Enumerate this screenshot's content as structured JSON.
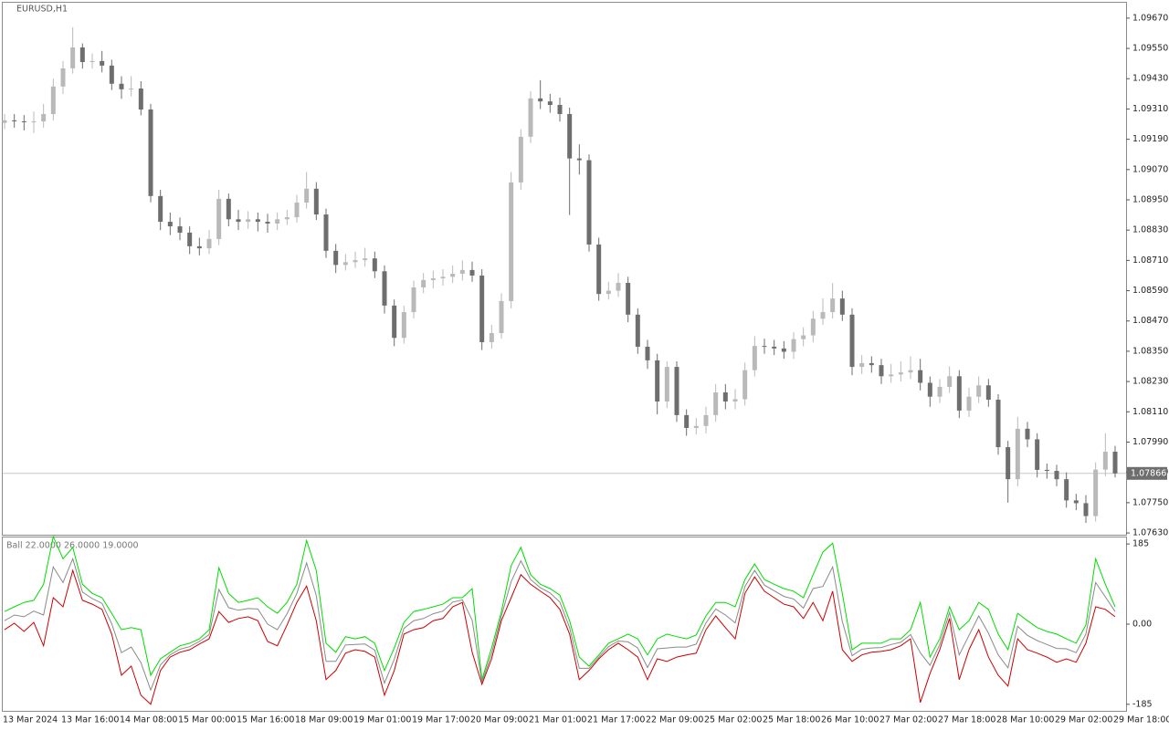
{
  "chart_data": [
    {
      "type": "candlestick",
      "title": "EURUSD,H1",
      "up_color": "#b9b9b9",
      "down_color": "#6e6e6e",
      "ylim": [
        1.07623,
        1.09731
      ],
      "yticks": [
        {
          "value": 1.0763,
          "label": "1.07630"
        },
        {
          "value": 1.0775,
          "label": "1.07750"
        },
        {
          "value": 1.0787,
          "label": "1.07870"
        },
        {
          "value": 1.0799,
          "label": "1.07990"
        },
        {
          "value": 1.0811,
          "label": "1.08110"
        },
        {
          "value": 1.0823,
          "label": "1.08230"
        },
        {
          "value": 1.0835,
          "label": "1.08350"
        },
        {
          "value": 1.0847,
          "label": "1.08470"
        },
        {
          "value": 1.0859,
          "label": "1.08590"
        },
        {
          "value": 1.0871,
          "label": "1.08710"
        },
        {
          "value": 1.0883,
          "label": "1.08830"
        },
        {
          "value": 1.0895,
          "label": "1.08950"
        },
        {
          "value": 1.0907,
          "label": "1.09070"
        },
        {
          "value": 1.0919,
          "label": "1.09190"
        },
        {
          "value": 1.0931,
          "label": "1.09310"
        },
        {
          "value": 1.0943,
          "label": "1.09430"
        },
        {
          "value": 1.0955,
          "label": "1.09550"
        },
        {
          "value": 1.0967,
          "label": "1.09670"
        }
      ],
      "current_price": 1.07866,
      "categories": [
        "13 Mar 2024",
        null,
        null,
        null,
        null,
        null,
        "13 Mar 16:00",
        null,
        null,
        null,
        null,
        null,
        "14 Mar 08:00",
        null,
        null,
        null,
        null,
        null,
        "15 Mar 00:00",
        null,
        null,
        null,
        null,
        null,
        "15 Mar 16:00",
        null,
        null,
        null,
        null,
        null,
        "18 Mar 09:00",
        null,
        null,
        null,
        null,
        null,
        "19 Mar 01:00",
        null,
        null,
        null,
        null,
        null,
        "19 Mar 17:00",
        null,
        null,
        null,
        null,
        null,
        "20 Mar 09:00",
        null,
        null,
        null,
        null,
        null,
        "21 Mar 01:00",
        null,
        null,
        null,
        null,
        null,
        "21 Mar 17:00",
        null,
        null,
        null,
        null,
        null,
        "22 Mar 09:00",
        null,
        null,
        null,
        null,
        null,
        "25 Mar 02:00",
        null,
        null,
        null,
        null,
        null,
        "25 Mar 18:00",
        null,
        null,
        null,
        null,
        null,
        "26 Mar 10:00",
        null,
        null,
        null,
        null,
        null,
        "27 Mar 02:00",
        null,
        null,
        null,
        null,
        null,
        "27 Mar 18:00",
        null,
        null,
        null,
        null,
        null,
        "28 Mar 10:00",
        null,
        null,
        null,
        null,
        null,
        "29 Mar 02:00",
        null,
        null,
        null,
        null,
        null,
        "29 Mar 18:00"
      ],
      "open": [
        1.09255,
        1.09265,
        1.09261,
        1.09258,
        1.09261,
        1.0929,
        1.09399,
        1.09471,
        1.09554,
        1.09496,
        1.095,
        1.09482,
        1.0941,
        1.09388,
        1.09391,
        1.09308,
        1.08965,
        1.08863,
        1.08845,
        1.0882,
        1.08766,
        1.08758,
        1.08795,
        1.08954,
        1.08873,
        1.08863,
        1.08873,
        1.08863,
        1.08856,
        1.08873,
        1.08881,
        1.08939,
        1.08994,
        1.08892,
        1.08748,
        1.08692,
        1.08703,
        1.08711,
        1.08718,
        1.08667,
        1.08531,
        1.08403,
        1.08505,
        1.08603,
        1.08632,
        1.08639,
        1.08645,
        1.08657,
        1.08672,
        1.0865,
        1.08386,
        1.08422,
        1.08549,
        1.09019,
        1.092,
        1.09352,
        1.0934,
        1.09326,
        1.0929,
        1.09114,
        1.09107,
        1.08773,
        1.08577,
        1.0859,
        1.08621,
        1.08495,
        1.08368,
        1.08314,
        1.08151,
        1.08288,
        1.08097,
        1.08046,
        1.08054,
        1.08097,
        1.08187,
        1.08151,
        1.0816,
        1.08275,
        1.08371,
        1.08368,
        1.08361,
        1.08348,
        1.08398,
        1.08413,
        1.08479,
        1.08505,
        1.08559,
        1.08495,
        1.08288,
        1.08303,
        1.08295,
        1.08251,
        1.08258,
        1.08266,
        1.08275,
        1.08225,
        1.0817,
        1.08209,
        1.08251,
        1.08115,
        1.0817,
        1.08215,
        1.08158,
        1.0797,
        1.07843,
        1.08043,
        1.08001,
        1.0788,
        1.07876,
        1.07843,
        1.07759,
        1.07748,
        1.07697,
        1.07881,
        1.07952
      ],
      "high": [
        1.0929,
        1.0929,
        1.09286,
        1.093,
        1.0933,
        1.0943,
        1.095,
        1.09634,
        1.0957,
        1.0953,
        1.0954,
        1.09505,
        1.0944,
        1.0944,
        1.0942,
        1.0933,
        1.0899,
        1.089,
        1.0888,
        1.08845,
        1.088,
        1.0883,
        1.0899,
        1.08975,
        1.0891,
        1.08905,
        1.089,
        1.08895,
        1.089,
        1.0891,
        1.0897,
        1.0906,
        1.0902,
        1.08915,
        1.08775,
        1.08735,
        1.08745,
        1.0876,
        1.08745,
        1.0869,
        1.08555,
        1.0853,
        1.0863,
        1.0866,
        1.0867,
        1.08675,
        1.0869,
        1.0871,
        1.08705,
        1.08675,
        1.08455,
        1.0858,
        1.0906,
        1.0923,
        1.0938,
        1.09424,
        1.0937,
        1.09355,
        1.09315,
        1.0917,
        1.0913,
        1.088,
        1.08625,
        1.0866,
        1.08645,
        1.0852,
        1.08395,
        1.0834,
        1.0831,
        1.0831,
        1.0812,
        1.08085,
        1.0813,
        1.0822,
        1.0822,
        1.082,
        1.08305,
        1.0841,
        1.084,
        1.08395,
        1.0839,
        1.08425,
        1.08445,
        1.0851,
        1.0856,
        1.0862,
        1.0859,
        1.0852,
        1.08335,
        1.0833,
        1.0832,
        1.083,
        1.0831,
        1.0833,
        1.0832,
        1.0825,
        1.0824,
        1.0829,
        1.08275,
        1.08205,
        1.0825,
        1.0824,
        1.0818,
        1.07995,
        1.0809,
        1.0807,
        1.08025,
        1.07905,
        1.079,
        1.0787,
        1.07785,
        1.0778,
        1.0791,
        1.08025,
        1.07975
      ],
      "low": [
        1.0923,
        1.09236,
        1.09225,
        1.09215,
        1.09236,
        1.09265,
        1.0937,
        1.0945,
        1.0947,
        1.0947,
        1.09455,
        1.09385,
        1.0935,
        1.0936,
        1.09285,
        1.0894,
        1.0883,
        1.0881,
        1.0879,
        1.08735,
        1.0873,
        1.08735,
        1.0877,
        1.08845,
        1.0883,
        1.08835,
        1.08825,
        1.0882,
        1.0883,
        1.0885,
        1.0886,
        1.08915,
        1.0887,
        1.0872,
        1.0866,
        1.0867,
        1.0868,
        1.08685,
        1.0864,
        1.085,
        1.0837,
        1.0838,
        1.0848,
        1.0858,
        1.086,
        1.0861,
        1.0862,
        1.0863,
        1.08625,
        1.08355,
        1.0836,
        1.084,
        1.0852,
        1.0899,
        1.09175,
        1.0931,
        1.09295,
        1.0926,
        1.0889,
        1.0905,
        1.08745,
        1.0855,
        1.08555,
        1.08565,
        1.08465,
        1.0834,
        1.0828,
        1.081,
        1.08125,
        1.0807,
        1.08015,
        1.0802,
        1.08025,
        1.0807,
        1.0812,
        1.0812,
        1.08135,
        1.0825,
        1.0834,
        1.08335,
        1.0832,
        1.0832,
        1.0837,
        1.08385,
        1.08455,
        1.0848,
        1.0847,
        1.08255,
        1.0826,
        1.08265,
        1.0822,
        1.08225,
        1.0823,
        1.0824,
        1.08195,
        1.0813,
        1.08145,
        1.08185,
        1.08085,
        1.0809,
        1.08145,
        1.0813,
        1.0794,
        1.0775,
        1.07815,
        1.0797,
        1.0785,
        1.07845,
        1.07815,
        1.0773,
        1.0772,
        1.0767,
        1.07675,
        1.07855,
        1.0785
      ],
      "close": [
        1.09265,
        1.09261,
        1.09258,
        1.09261,
        1.0929,
        1.09399,
        1.09471,
        1.09554,
        1.09496,
        1.095,
        1.09482,
        1.0941,
        1.09388,
        1.09391,
        1.09308,
        1.08965,
        1.08863,
        1.08845,
        1.0882,
        1.08766,
        1.08758,
        1.08795,
        1.08954,
        1.08873,
        1.08863,
        1.08873,
        1.08863,
        1.08856,
        1.08873,
        1.08881,
        1.08939,
        1.08994,
        1.08892,
        1.08748,
        1.08692,
        1.08703,
        1.08711,
        1.08718,
        1.08667,
        1.08531,
        1.08403,
        1.08505,
        1.08603,
        1.08632,
        1.08639,
        1.08645,
        1.08657,
        1.08672,
        1.0865,
        1.08386,
        1.08422,
        1.08549,
        1.09019,
        1.092,
        1.09352,
        1.0934,
        1.09326,
        1.0929,
        1.09114,
        1.09107,
        1.08773,
        1.08577,
        1.0859,
        1.08621,
        1.08495,
        1.08368,
        1.08314,
        1.08151,
        1.08288,
        1.08097,
        1.08046,
        1.08054,
        1.08097,
        1.08187,
        1.08151,
        1.0816,
        1.08275,
        1.08371,
        1.08368,
        1.08361,
        1.08348,
        1.08398,
        1.08413,
        1.08479,
        1.08505,
        1.08559,
        1.08495,
        1.08288,
        1.08303,
        1.08295,
        1.08251,
        1.08258,
        1.08266,
        1.08275,
        1.08225,
        1.0817,
        1.08209,
        1.08251,
        1.08115,
        1.0817,
        1.08215,
        1.08158,
        1.0797,
        1.07843,
        1.08043,
        1.08001,
        1.0788,
        1.07876,
        1.07843,
        1.07759,
        1.07748,
        1.07697,
        1.07881,
        1.07952,
        1.07866
      ]
    },
    {
      "type": "line",
      "title": "Ball 22.0000 26.0000 19.0000",
      "ylim": [
        -198,
        200
      ],
      "yticks": [
        185,
        {
          "value": 0,
          "label": "0.00"
        },
        -185
      ],
      "series": [
        {
          "color": "#00dd00",
          "values": [
            29,
            40,
            50,
            55,
            92,
            202,
            151,
            177,
            92,
            71,
            61,
            25,
            -13,
            -8,
            -13,
            -118,
            -80,
            -65,
            -50,
            -44,
            -34,
            -13,
            130,
            71,
            50,
            55,
            61,
            40,
            25,
            50,
            92,
            193,
            124,
            -44,
            -65,
            -29,
            -34,
            -29,
            -44,
            -107,
            -55,
            4,
            29,
            34,
            40,
            46,
            61,
            61,
            82,
            -128,
            -55,
            29,
            135,
            177,
            114,
            92,
            82,
            67,
            8,
            -76,
            -97,
            -71,
            -44,
            -34,
            -23,
            -34,
            -71,
            -34,
            -23,
            -29,
            -34,
            -25,
            19,
            50,
            50,
            40,
            103,
            139,
            103,
            92,
            82,
            76,
            61,
            114,
            166,
            187,
            71,
            -59,
            -44,
            -44,
            -44,
            -34,
            -34,
            -13,
            50,
            -76,
            -34,
            40,
            -13,
            8,
            50,
            34,
            -23,
            -59,
            25,
            8,
            -8,
            -17,
            -23,
            -34,
            -44,
            -2,
            151,
            92,
            40
          ]
        },
        {
          "color": "#8a8a8a",
          "values": [
            8,
            21,
            17,
            30,
            21,
            132,
            96,
            151,
            74,
            59,
            48,
            1,
            -66,
            -53,
            -89,
            -152,
            -94,
            -71,
            -58,
            -52,
            -40,
            -24,
            80,
            38,
            32,
            36,
            35,
            0,
            -13,
            24,
            71,
            141,
            66,
            -86,
            -86,
            -48,
            -47,
            -46,
            -60,
            -136,
            -81,
            -10,
            8,
            13,
            24,
            30,
            51,
            56,
            9,
            -134,
            -68,
            19,
            98,
            146,
            103,
            84,
            72,
            51,
            -8,
            -102,
            -102,
            -76,
            -52,
            -39,
            -41,
            -55,
            -100,
            -57,
            -55,
            -53,
            -53,
            -46,
            3,
            35,
            21,
            3,
            87,
            124,
            90,
            77,
            64,
            58,
            37,
            82,
            87,
            132,
            6,
            -73,
            -58,
            -55,
            -54,
            -47,
            -42,
            -24,
            -66,
            -95,
            -47,
            27,
            -71,
            -26,
            19,
            -21,
            -71,
            -101,
            -5,
            -26,
            -38,
            -47,
            -56,
            -57,
            -66,
            -23,
            96,
            63,
            29
          ]
        },
        {
          "color": "#cc0000",
          "values": [
            -13,
            2,
            -17,
            4,
            -50,
            61,
            40,
            124,
            55,
            46,
            34,
            -23,
            -118,
            -97,
            -164,
            -185,
            -107,
            -76,
            -65,
            -59,
            -46,
            -34,
            29,
            4,
            13,
            17,
            8,
            -40,
            -50,
            -2,
            50,
            88,
            8,
            -128,
            -107,
            -67,
            -59,
            -63,
            -76,
            -164,
            -107,
            -23,
            -13,
            -8,
            8,
            13,
            40,
            50,
            -65,
            -139,
            -80,
            8,
            61,
            114,
            92,
            76,
            61,
            34,
            -23,
            -128,
            -107,
            -80,
            -59,
            -44,
            -59,
            -76,
            -128,
            -80,
            -86,
            -76,
            -71,
            -67,
            -13,
            19,
            -8,
            -34,
            71,
            109,
            76,
            61,
            46,
            40,
            13,
            50,
            8,
            76,
            -59,
            -86,
            -71,
            -65,
            -63,
            -59,
            -50,
            -34,
            -181,
            -114,
            -59,
            13,
            -128,
            -59,
            -13,
            -76,
            -118,
            -143,
            -34,
            -59,
            -67,
            -76,
            -88,
            -80,
            -88,
            -44,
            40,
            34,
            17
          ]
        }
      ]
    }
  ]
}
